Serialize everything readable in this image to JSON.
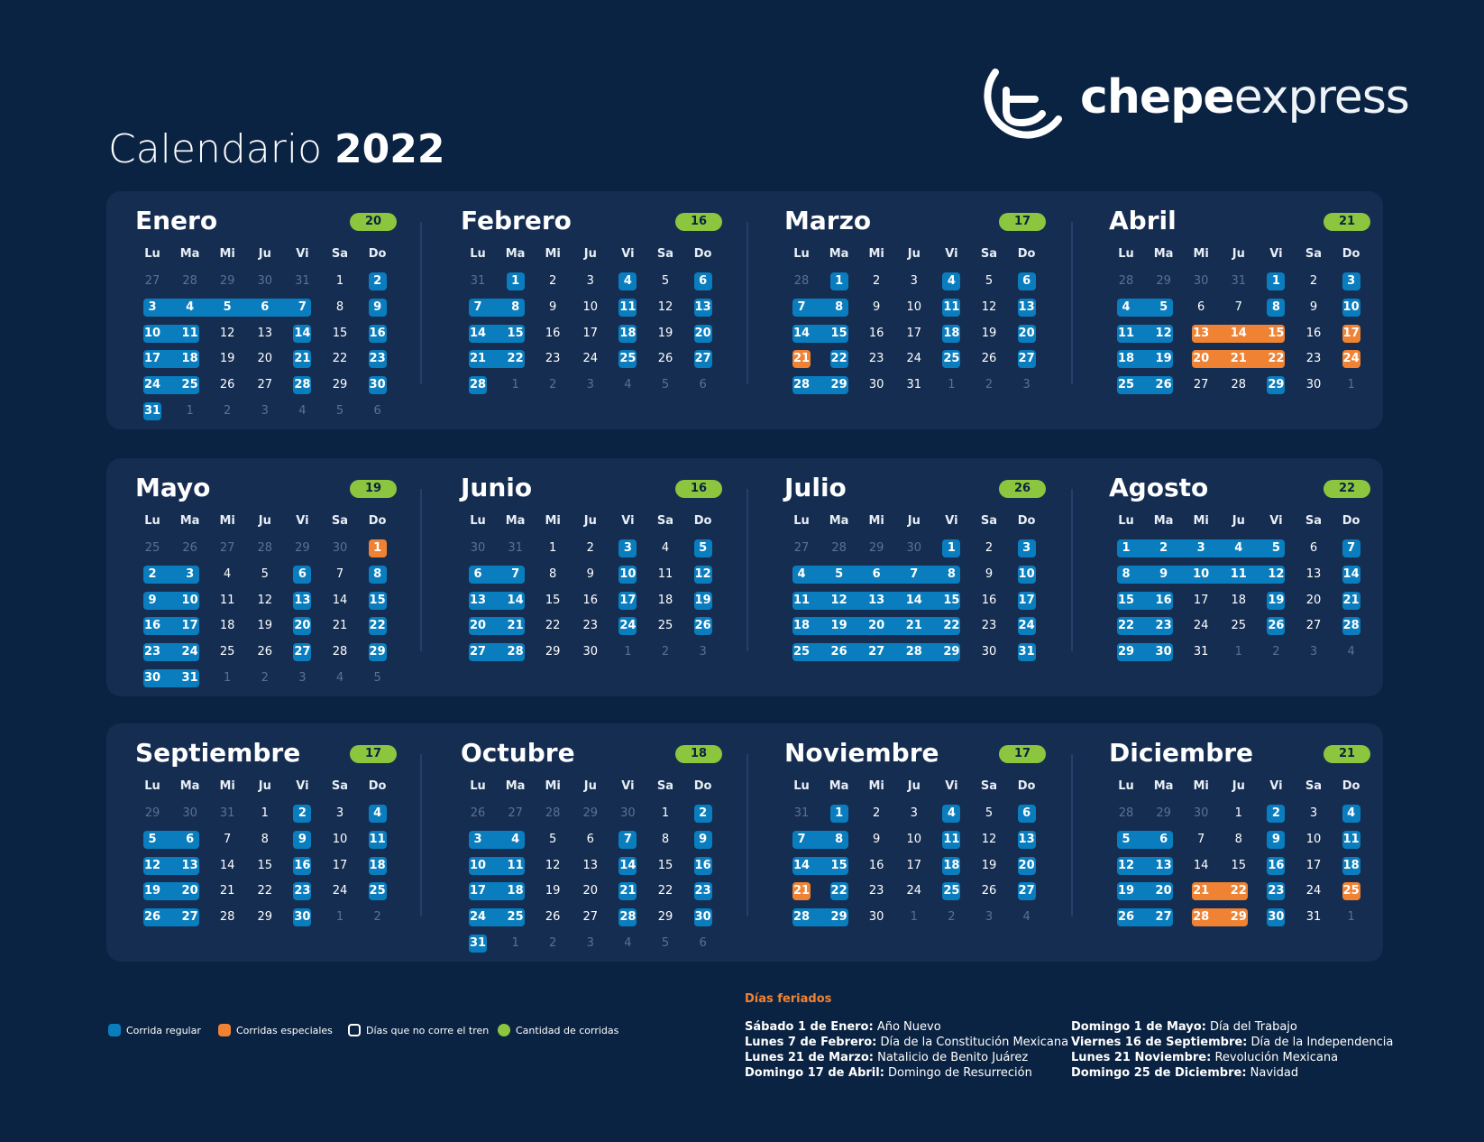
{
  "brand": {
    "name_bold": "chepe",
    "name_light": "express"
  },
  "title": {
    "prefix": "Calendario",
    "year": "2022"
  },
  "weekdays": [
    "Lu",
    "Ma",
    "Mi",
    "Ju",
    "Vi",
    "Sa",
    "Do"
  ],
  "colors": {
    "background": "#0b2342",
    "panel": "#152d51",
    "regular": "#0a7dbe",
    "special": "#f08233",
    "count": "#8cc63f"
  },
  "months": [
    {
      "name": "Enero",
      "count": "20",
      "first_dow": 5,
      "days": 31,
      "prev_days": 31,
      "regular": [
        2,
        3,
        4,
        5,
        6,
        7,
        9,
        10,
        11,
        14,
        16,
        17,
        18,
        21,
        23,
        24,
        25,
        28,
        30,
        31
      ],
      "special": []
    },
    {
      "name": "Febrero",
      "count": "16",
      "first_dow": 1,
      "days": 28,
      "prev_days": 31,
      "regular": [
        1,
        4,
        6,
        7,
        8,
        11,
        13,
        14,
        15,
        18,
        20,
        21,
        22,
        25,
        27,
        28
      ],
      "special": []
    },
    {
      "name": "Marzo",
      "count": "17",
      "first_dow": 1,
      "days": 31,
      "prev_days": 28,
      "regular": [
        1,
        4,
        6,
        7,
        8,
        11,
        13,
        14,
        15,
        18,
        20,
        22,
        25,
        27,
        28,
        29
      ],
      "special": [
        21
      ]
    },
    {
      "name": "Abril",
      "count": "21",
      "first_dow": 4,
      "days": 30,
      "prev_days": 31,
      "regular": [
        1,
        3,
        4,
        5,
        8,
        10,
        11,
        12,
        18,
        19,
        25,
        26,
        29
      ],
      "special": [
        13,
        14,
        15,
        17,
        20,
        21,
        22,
        24
      ]
    },
    {
      "name": "Mayo",
      "count": "19",
      "first_dow": 6,
      "days": 31,
      "prev_days": 30,
      "regular": [
        2,
        3,
        6,
        8,
        9,
        10,
        13,
        15,
        16,
        17,
        20,
        22,
        23,
        24,
        27,
        29,
        30,
        31
      ],
      "special": [
        1
      ]
    },
    {
      "name": "Junio",
      "count": "16",
      "first_dow": 2,
      "days": 30,
      "prev_days": 31,
      "regular": [
        3,
        5,
        6,
        7,
        10,
        12,
        13,
        14,
        17,
        19,
        20,
        21,
        24,
        26,
        27,
        28
      ],
      "special": []
    },
    {
      "name": "Julio",
      "count": "26",
      "first_dow": 4,
      "days": 31,
      "prev_days": 30,
      "regular": [
        1,
        3,
        4,
        5,
        6,
        7,
        8,
        10,
        11,
        12,
        13,
        14,
        15,
        17,
        18,
        19,
        20,
        21,
        22,
        24,
        25,
        26,
        27,
        28,
        29,
        31
      ],
      "special": []
    },
    {
      "name": "Agosto",
      "count": "22",
      "first_dow": 0,
      "days": 31,
      "prev_days": 31,
      "regular": [
        1,
        2,
        3,
        4,
        5,
        7,
        8,
        9,
        10,
        11,
        12,
        14,
        15,
        16,
        19,
        21,
        22,
        23,
        26,
        28,
        29,
        30
      ],
      "special": []
    },
    {
      "name": "Septiembre",
      "count": "17",
      "first_dow": 3,
      "days": 30,
      "prev_days": 31,
      "regular": [
        2,
        4,
        5,
        6,
        9,
        11,
        12,
        13,
        16,
        18,
        19,
        20,
        23,
        25,
        26,
        27,
        30
      ],
      "special": []
    },
    {
      "name": "Octubre",
      "count": "18",
      "first_dow": 5,
      "days": 31,
      "prev_days": 30,
      "regular": [
        2,
        3,
        4,
        7,
        9,
        10,
        11,
        14,
        16,
        17,
        18,
        21,
        23,
        24,
        25,
        28,
        30,
        31
      ],
      "special": []
    },
    {
      "name": "Noviembre",
      "count": "17",
      "first_dow": 1,
      "days": 30,
      "prev_days": 31,
      "regular": [
        1,
        4,
        6,
        7,
        8,
        11,
        13,
        14,
        15,
        18,
        20,
        22,
        25,
        27,
        28,
        29
      ],
      "special": [
        21
      ]
    },
    {
      "name": "Diciembre",
      "count": "21",
      "first_dow": 3,
      "days": 31,
      "prev_days": 30,
      "regular": [
        2,
        4,
        5,
        6,
        9,
        11,
        12,
        13,
        16,
        18,
        19,
        20,
        23,
        26,
        27,
        30
      ],
      "special": [
        21,
        22,
        25,
        28,
        29
      ]
    }
  ],
  "legend": {
    "regular": "Corrida regular",
    "special": "Corridas especiales",
    "no_train": "Días que no corre el tren",
    "count": "Cantidad de corridas"
  },
  "holidays": {
    "title": "Días feriados",
    "col1": [
      {
        "date": "Sábado 1 de Enero:",
        "name": " Año Nuevo"
      },
      {
        "date": "Lunes 7 de Febrero:",
        "name": " Día de la Constitución Mexicana"
      },
      {
        "date": "Lunes 21 de Marzo:",
        "name": " Natalicio de Benito Juárez"
      },
      {
        "date": "Domingo 17 de Abril:",
        "name": " Domingo de Resurreción"
      }
    ],
    "col2": [
      {
        "date": "Domingo 1 de Mayo:",
        "name": " Día del Trabajo"
      },
      {
        "date": "Viernes 16 de Septiembre:",
        "name": " Día de la Independencia"
      },
      {
        "date": "Lunes 21 Noviembre:",
        "name": " Revolución Mexicana"
      },
      {
        "date": "Domingo 25 de Diciembre:",
        "name": " Navidad"
      }
    ]
  }
}
